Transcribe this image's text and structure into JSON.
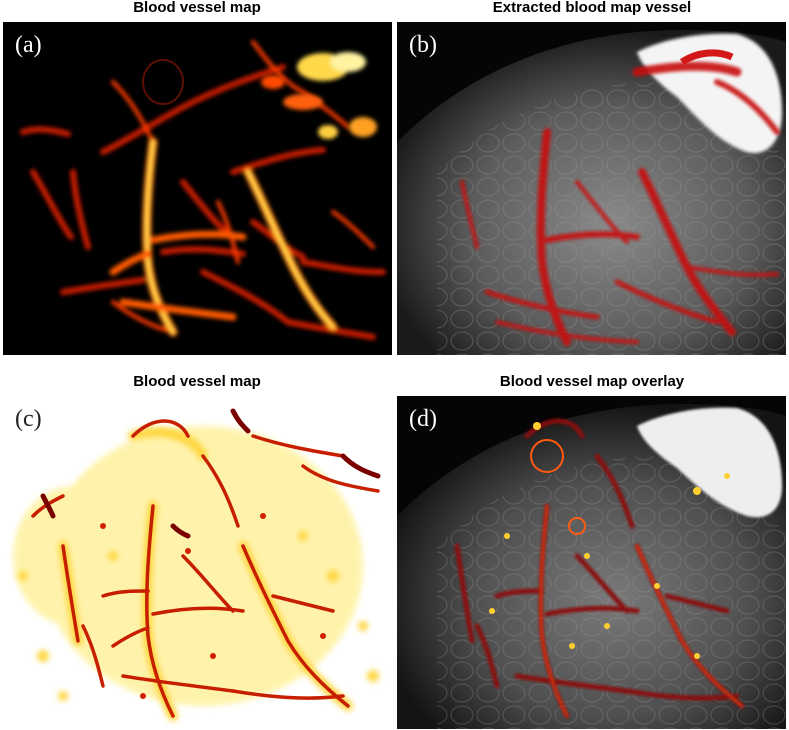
{
  "panels": {
    "a": {
      "title": "Blood vessel map",
      "label": "(a)"
    },
    "b": {
      "title": "Extracted blood map vessel",
      "label": "(b)"
    },
    "c": {
      "title": "Blood vessel map",
      "label": "(c)"
    },
    "d": {
      "title": "Blood vessel map overlay",
      "label": "(d)"
    }
  },
  "colors": {
    "vessel_hot": "#ff3a00",
    "vessel_bright": "#ffe14a",
    "vessel_red": "#c81010",
    "panel_dark": "#000000",
    "tissue_gray": "#6e6e6e",
    "panel_c_bg": "#fffbe8"
  }
}
